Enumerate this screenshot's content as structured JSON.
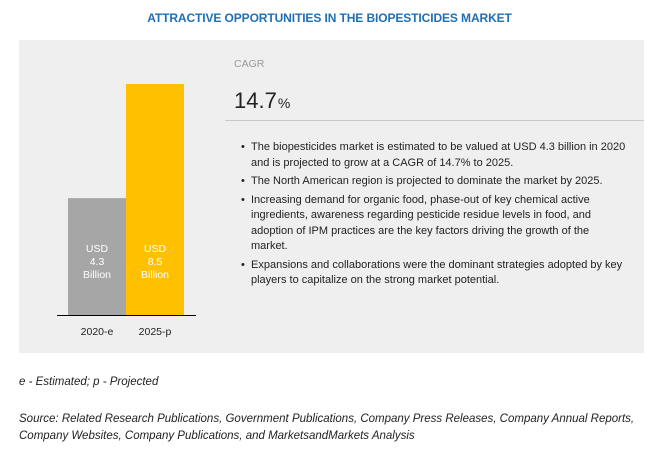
{
  "title": "ATTRACTIVE OPPORTUNITIES IN THE BIOPESTICIDES MARKET",
  "cagr": {
    "label": "CAGR",
    "value": "14.7",
    "unit": "%"
  },
  "bullets": [
    "The biopesticides market is estimated to be valued at USD 4.3 billion in 2020 and is projected to grow at a CAGR of 14.7% to 2025.",
    "The North American region is projected to dominate the market by 2025.",
    "Increasing demand for organic food, phase-out of key chemical active ingredients, awareness regarding pesticide residue levels in food, and adoption of IPM practices are the key factors driving the growth of the market.",
    "Expansions and collaborations were the dominant strategies adopted by key players to capitalize on the strong market potential."
  ],
  "footnote": "e - Estimated; p - Projected",
  "source": "Source: Related Research Publications, Government Publications, Company Press Releases, Company Annual Reports, Company Websites, Company Publications, and MarketsandMarkets Analysis",
  "chart_data": {
    "type": "bar",
    "categories": [
      "2020-e",
      "2025-p"
    ],
    "values": [
      4.3,
      8.5
    ],
    "unit": "USD Billion",
    "data_labels": [
      [
        "USD",
        "4.3",
        "Billion"
      ],
      [
        "USD",
        "8.5",
        "Billion"
      ]
    ],
    "colors": [
      "#a6a6a6",
      "#ffc000"
    ],
    "ylim": [
      0,
      8.5
    ],
    "grid": false,
    "legend": "none"
  }
}
